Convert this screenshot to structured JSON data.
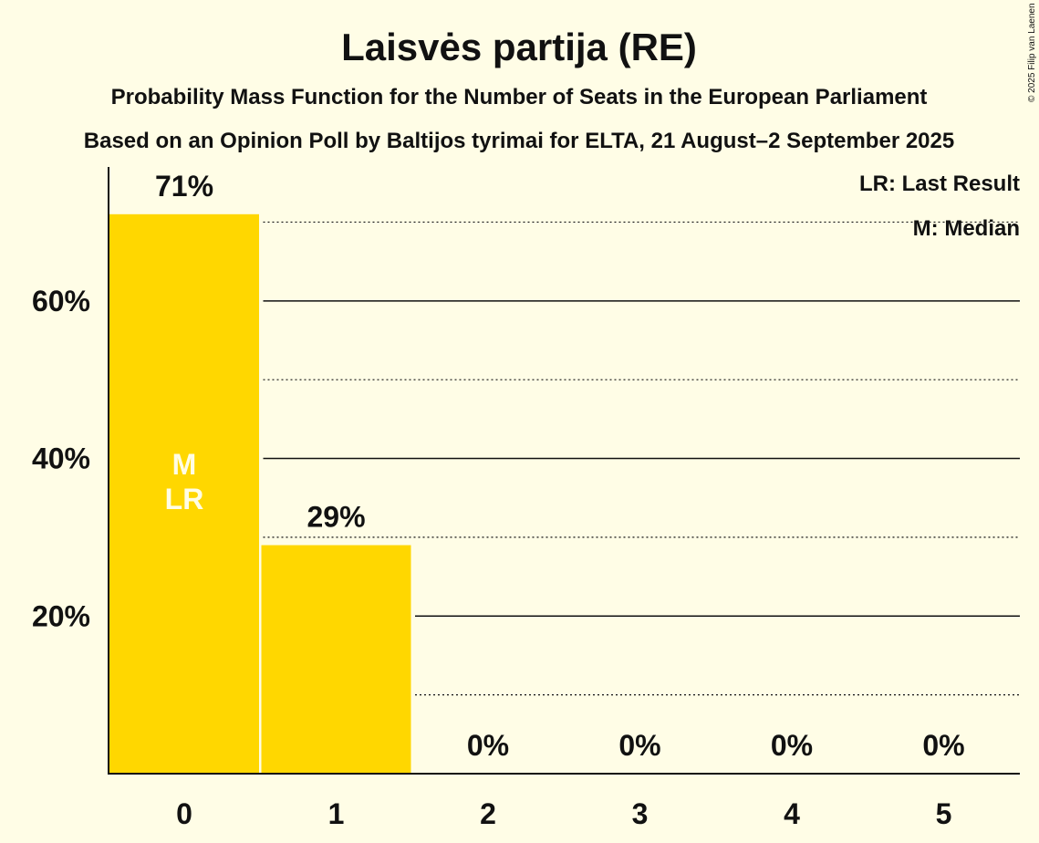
{
  "chart_data": {
    "type": "bar",
    "title": "Laisvės partija (RE)",
    "subtitle": "Probability Mass Function for the Number of Seats in the European Parliament",
    "subtitle2": "Based on an Opinion Poll by Baltijos tyrimai for ELTA, 21 August–2 September 2025",
    "categories": [
      "0",
      "1",
      "2",
      "3",
      "4",
      "5"
    ],
    "values": [
      71,
      29,
      0,
      0,
      0,
      0
    ],
    "value_labels": [
      "71%",
      "29%",
      "0%",
      "0%",
      "0%",
      "0%"
    ],
    "ylim": [
      0,
      77
    ],
    "yticks": [
      20,
      40,
      60
    ],
    "ytick_labels": [
      "20%",
      "40%",
      "60%"
    ],
    "dotted_gridlines": [
      10,
      30,
      50,
      70
    ],
    "bar_markers": [
      {
        "category": "0",
        "lines": [
          "M",
          "LR"
        ]
      }
    ],
    "legend": [
      "LR: Last Result",
      "M: Median"
    ],
    "legend_position": "top-right",
    "bar_color": "#ffd700",
    "background_color": "#fffde6"
  },
  "copyright": "© 2025 Filip van Laenen"
}
